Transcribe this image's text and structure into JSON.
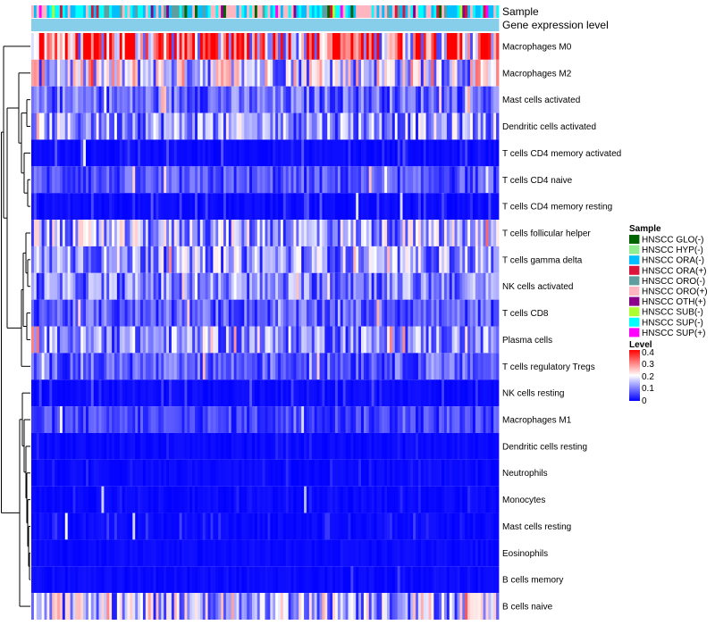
{
  "chart_data": {
    "type": "heatmap",
    "title": "",
    "column_count": 180,
    "annotation_tracks": [
      "Sample",
      "Gene expression level"
    ],
    "rows": [
      {
        "label": "Macrophages M0",
        "mean": 0.3
      },
      {
        "label": "Macrophages M2",
        "mean": 0.17
      },
      {
        "label": "Mast cells activated",
        "mean": 0.08
      },
      {
        "label": "Dendritic cells activated",
        "mean": 0.12
      },
      {
        "label": "T cells CD4 memory activated",
        "mean": 0.04
      },
      {
        "label": "T cells CD4 naive",
        "mean": 0.06
      },
      {
        "label": "T cells CD4 memory resting",
        "mean": 0.04
      },
      {
        "label": "T cells follicular helper",
        "mean": 0.13
      },
      {
        "label": "T cells gamma delta",
        "mean": 0.12
      },
      {
        "label": "NK cells activated",
        "mean": 0.1
      },
      {
        "label": "T cells CD8",
        "mean": 0.07
      },
      {
        "label": "Plasma cells",
        "mean": 0.11
      },
      {
        "label": "T cells regulatory  Tregs",
        "mean": 0.07
      },
      {
        "label": "NK cells resting",
        "mean": 0.04
      },
      {
        "label": "Macrophages M1",
        "mean": 0.05
      },
      {
        "label": "Dendritic cells resting",
        "mean": 0.02
      },
      {
        "label": "Neutrophils",
        "mean": 0.02
      },
      {
        "label": "Monocytes",
        "mean": 0.02
      },
      {
        "label": "Mast cells resting",
        "mean": 0.03
      },
      {
        "label": "Eosinophils",
        "mean": 0.01
      },
      {
        "label": "B cells memory",
        "mean": 0.01
      },
      {
        "label": "B cells naive",
        "mean": 0.15
      }
    ],
    "color_scale": {
      "min": 0,
      "max": 0.4,
      "colors": [
        "#0000ff",
        "#ffffff",
        "#ff0000"
      ]
    },
    "legend": {
      "sample_title": "Sample",
      "samples": [
        {
          "name": "HNSCC GLO(-)",
          "color": "#006400"
        },
        {
          "name": "HNSCC HYP(-)",
          "color": "#90ee90"
        },
        {
          "name": "HNSCC ORA(-)",
          "color": "#00bfff"
        },
        {
          "name": "HNSCC ORA(+)",
          "color": "#dc143c"
        },
        {
          "name": "HNSCC ORO(-)",
          "color": "#5f9ea0"
        },
        {
          "name": "HNSCC ORO(+)",
          "color": "#ffb6c1"
        },
        {
          "name": "HNSCC OTH(+)",
          "color": "#8b008b"
        },
        {
          "name": "HNSCC SUB(-)",
          "color": "#adff2f"
        },
        {
          "name": "HNSCC SUP(-)",
          "color": "#00ffff"
        },
        {
          "name": "HNSCC SUP(+)",
          "color": "#ff00ff"
        }
      ],
      "level_title": "Level",
      "level_ticks": [
        "0.4",
        "0.3",
        "0.2",
        "0.1",
        "0"
      ]
    },
    "gene_expression_color": "#87ceeb"
  }
}
